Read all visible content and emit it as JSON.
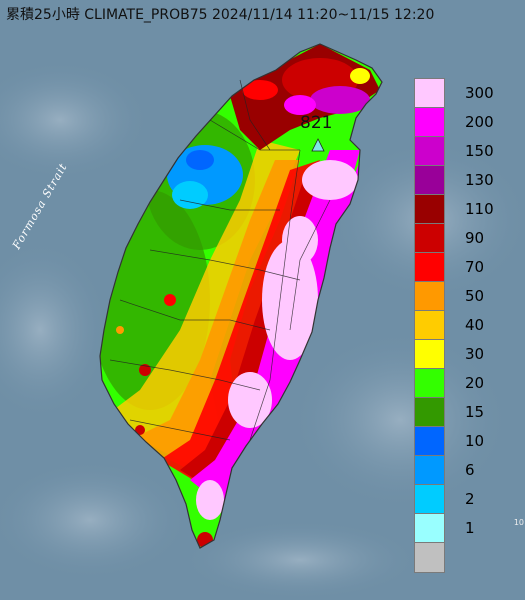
{
  "title": "累積25小時 CLIMATE_PROB75 2024/11/14 11:20~11/15 12:20",
  "strait_label": "Formosa Strait",
  "max_station": {
    "value": "821",
    "marker": "triangle-marker-icon",
    "marker_color": "#7fe8e6"
  },
  "corner_note": "10",
  "legend": [
    {
      "label": "300",
      "color": "#ffc8ff"
    },
    {
      "label": "200",
      "color": "#ff00ff"
    },
    {
      "label": "150",
      "color": "#cc00cc"
    },
    {
      "label": "130",
      "color": "#990099"
    },
    {
      "label": "110",
      "color": "#990000"
    },
    {
      "label": "90",
      "color": "#cc0000"
    },
    {
      "label": "70",
      "color": "#ff0000"
    },
    {
      "label": "50",
      "color": "#ff9900"
    },
    {
      "label": "40",
      "color": "#ffcc00"
    },
    {
      "label": "30",
      "color": "#ffff00"
    },
    {
      "label": "20",
      "color": "#33ff00"
    },
    {
      "label": "15",
      "color": "#339900"
    },
    {
      "label": "10",
      "color": "#0066ff"
    },
    {
      "label": "6",
      "color": "#0099ff"
    },
    {
      "label": "2",
      "color": "#00ccff"
    },
    {
      "label": "1",
      "color": "#99ffff"
    },
    {
      "label": "",
      "color": "#c0c0c0"
    }
  ],
  "colors": {
    "sea": "#6f8fa6",
    "land_outline": "#333333",
    "county_lines": "#222222"
  }
}
